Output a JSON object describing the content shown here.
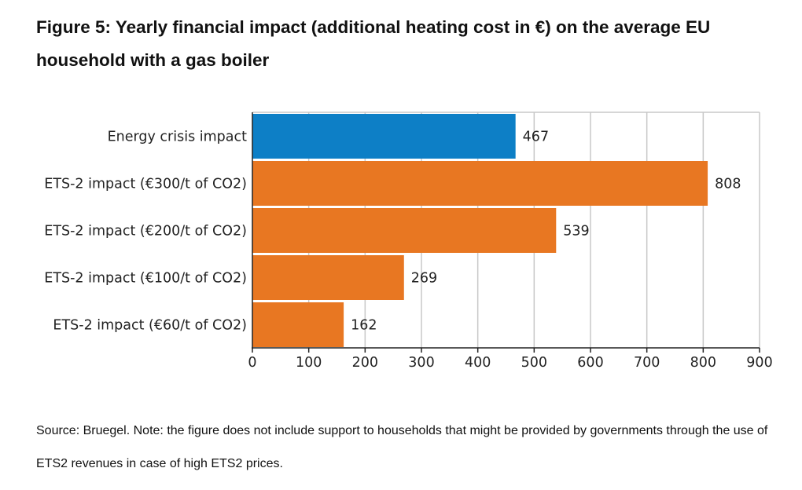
{
  "figure": {
    "title": "Figure 5: Yearly financial impact (additional heating cost in €) on the average EU household with a gas boiler",
    "source_note": "Source: Bruegel. Note: the figure does not include support to households that might be provided by governments through the use of ETS2 revenues in case of high ETS2 prices."
  },
  "chart_data": {
    "type": "bar",
    "orientation": "horizontal",
    "title": "Figure 5: Yearly financial impact (additional heating cost in €) on the average EU household with a gas boiler",
    "categories": [
      "Energy crisis impact",
      "ETS-2 impact (€300/t of CO2)",
      "ETS-2 impact (€200/t of CO2)",
      "ETS-2 impact (€100/t of CO2)",
      "ETS-2 impact (€60/t of CO2)"
    ],
    "values": [
      467,
      808,
      539,
      269,
      162
    ],
    "data_labels": [
      "467",
      "808",
      "539",
      "269",
      "162"
    ],
    "bar_colors": [
      "#0d7fc6",
      "#e87722",
      "#e87722",
      "#e87722",
      "#e87722"
    ],
    "xlim": [
      0,
      900
    ],
    "xticks": [
      0,
      100,
      200,
      300,
      400,
      500,
      600,
      700,
      800,
      900
    ],
    "xtick_labels": [
      "0",
      "100",
      "200",
      "300",
      "400",
      "500",
      "600",
      "700",
      "800",
      "900"
    ],
    "grid": "vertical",
    "legend": "none",
    "xlabel": "",
    "ylabel": ""
  },
  "colors": {
    "blue": "#0d7fc6",
    "orange": "#e87722",
    "grid": "#c8c8c8",
    "axis": "#222222"
  }
}
